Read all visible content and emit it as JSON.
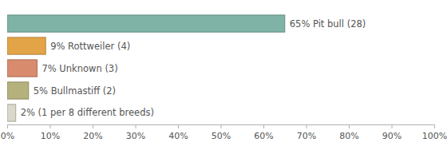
{
  "chart_data": {
    "type": "bar",
    "orientation": "horizontal",
    "categories": [
      null,
      null,
      null,
      null,
      null
    ],
    "values": [
      65,
      9,
      7,
      5,
      2
    ],
    "value_labels": [
      "65% Pit bull (28)",
      "9% Rottweiler (4)",
      "7% Unknown (3)",
      "5% Bullmastiff (2)",
      "2% (1 per 8 different breeds)"
    ],
    "colors": [
      "#7fb3a6",
      "#e3a448",
      "#d98b6e",
      "#b5b17d",
      "#d9d8ca"
    ],
    "xlim": [
      0,
      100
    ],
    "xticks": [
      {
        "value": 0,
        "label": "0%"
      },
      {
        "value": 10,
        "label": "10%"
      },
      {
        "value": 20,
        "label": "20%"
      },
      {
        "value": 30,
        "label": "30%"
      },
      {
        "value": 40,
        "label": "40%"
      },
      {
        "value": 50,
        "label": "50%"
      },
      {
        "value": 60,
        "label": "60%"
      },
      {
        "value": 70,
        "label": "70%"
      },
      {
        "value": 80,
        "label": "80%"
      },
      {
        "value": 90,
        "label": "90%"
      },
      {
        "value": 100,
        "label": "100%"
      }
    ],
    "grid": false,
    "data_labels": true,
    "tick_labels": "x"
  }
}
